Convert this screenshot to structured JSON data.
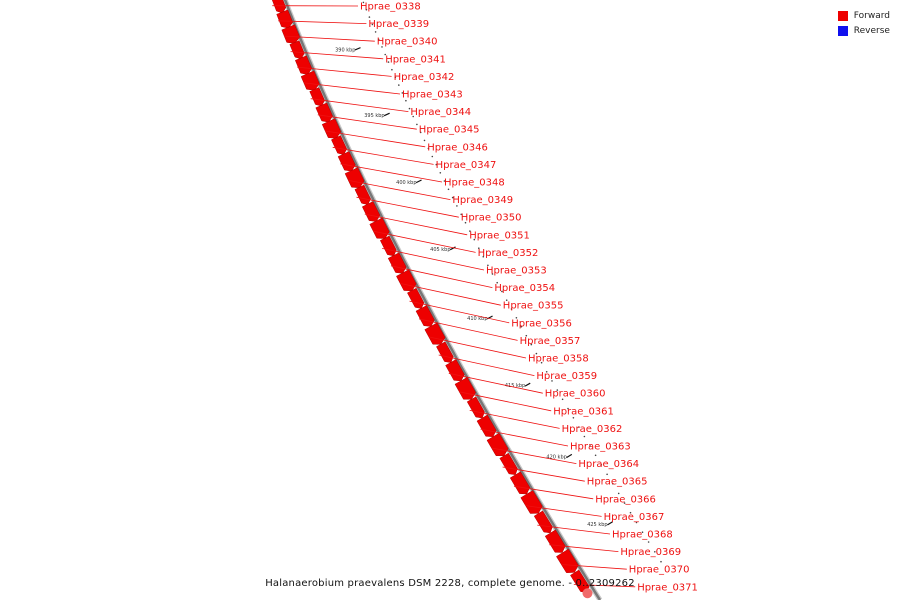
{
  "legend": {
    "forward_label": "Forward",
    "reverse_label": "Reverse",
    "forward_color": "#ee0000",
    "reverse_color": "#1010ee"
  },
  "caption": "Halanaerobium praevalens DSM 2228, complete genome. - 0..2309262",
  "ticks": [
    "390 kbp",
    "395 kbp",
    "400 kbp",
    "405 kbp",
    "410 kbp",
    "415 kbp",
    "420 kbp",
    "425 kbp"
  ],
  "genes": [
    "Hprae_0338",
    "Hprae_0339",
    "Hprae_0340",
    "Hprae_0341",
    "Hprae_0342",
    "Hprae_0343",
    "Hprae_0344",
    "Hprae_0345",
    "Hprae_0346",
    "Hprae_0347",
    "Hprae_0348",
    "Hprae_0349",
    "Hprae_0350",
    "Hprae_0351",
    "Hprae_0352",
    "Hprae_0353",
    "Hprae_0354",
    "Hprae_0355",
    "Hprae_0356",
    "Hprae_0357",
    "Hprae_0358",
    "Hprae_0359",
    "Hprae_0360",
    "Hprae_0361",
    "Hprae_0362",
    "Hprae_0363",
    "Hprae_0364",
    "Hprae_0365",
    "Hprae_0366",
    "Hprae_0367",
    "Hprae_0368",
    "Hprae_0369",
    "Hprae_0370",
    "Hprae_0371"
  ]
}
